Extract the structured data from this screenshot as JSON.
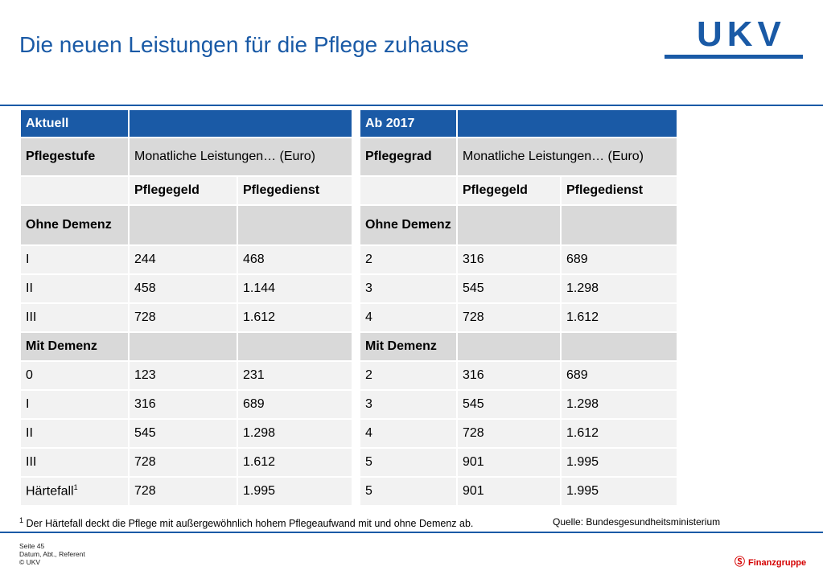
{
  "title": "Die neuen Leistungen für die Pflege zuhause",
  "logo": "UKV",
  "left": {
    "header": "Aktuell",
    "col1": "Pflegestufe",
    "span_header": "Monatliche Leistungen… (Euro)",
    "col_a": "Pflegegeld",
    "col_b": "Pflegedienst",
    "section1": "Ohne Demenz",
    "rows1": [
      [
        "I",
        "244",
        "468"
      ],
      [
        "II",
        "458",
        "1.144"
      ],
      [
        "III",
        "728",
        "1.612"
      ]
    ],
    "section2": "Mit Demenz",
    "rows2": [
      [
        "0",
        "123",
        "231"
      ],
      [
        "I",
        "316",
        "689"
      ],
      [
        "II",
        "545",
        "1.298"
      ],
      [
        "III",
        "728",
        "1.612"
      ],
      [
        "Härtefall",
        "728",
        "1.995"
      ]
    ],
    "footnote_mark": "1"
  },
  "right": {
    "header": "Ab 2017",
    "col1": "Pflegegrad",
    "span_header": "Monatliche Leistungen… (Euro)",
    "col_a": "Pflegegeld",
    "col_b": "Pflegedienst",
    "section1": "Ohne Demenz",
    "rows1": [
      [
        "2",
        "316",
        "689"
      ],
      [
        "3",
        "545",
        "1.298"
      ],
      [
        "4",
        "728",
        "1.612"
      ]
    ],
    "section2": "Mit Demenz",
    "rows2": [
      [
        "2",
        "316",
        "689"
      ],
      [
        "3",
        "545",
        "1.298"
      ],
      [
        "4",
        "728",
        "1.612"
      ],
      [
        "5",
        "901",
        "1.995"
      ],
      [
        "5",
        "901",
        "1.995"
      ]
    ]
  },
  "footnote": {
    "mark": "1",
    "text": "Der Härtefall deckt die Pflege mit außergewöhnlich hohem Pflegeaufwand mit und ohne Demenz ab."
  },
  "source": "Quelle: Bundesgesundheitsministerium",
  "meta": {
    "page": "Seite 45",
    "line2": "Datum, Abt., Referent",
    "line3": "© UKV"
  },
  "brand": "Finanzgruppe",
  "colors": {
    "primary": "#1a5aa6",
    "sparkasse_red": "#d40000"
  }
}
